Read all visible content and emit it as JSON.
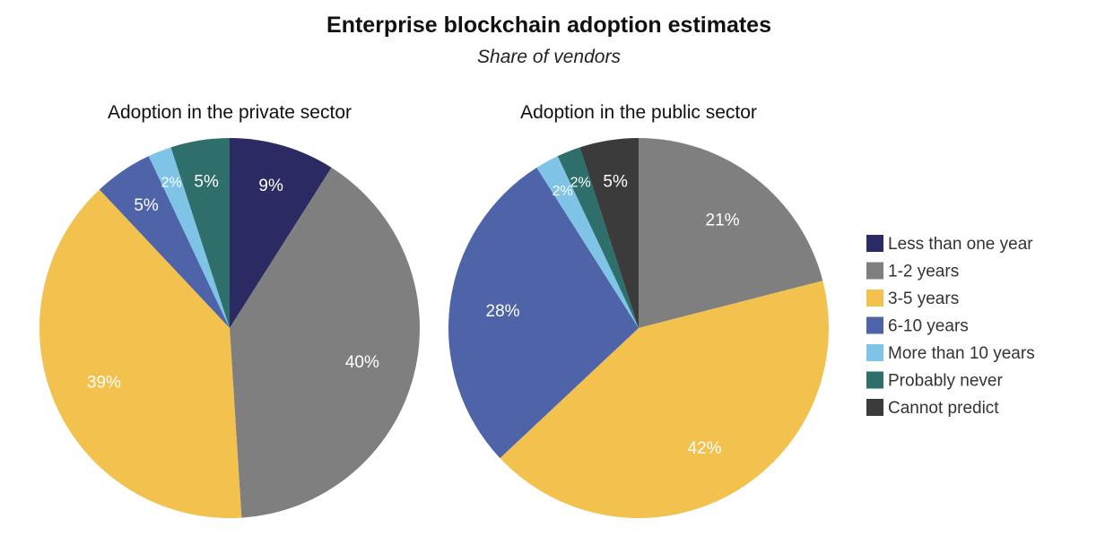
{
  "chart_data": {
    "title": "Enterprise blockchain adoption estimates",
    "subtitle": "Share of vendors",
    "legend": {
      "placement": "right",
      "entries": [
        {
          "name": "Less than one year",
          "color": "#2b2a63"
        },
        {
          "name": "1-2 years",
          "color": "#7f7f7f"
        },
        {
          "name": "3-5 years",
          "color": "#f2c14e"
        },
        {
          "name": "6-10 years",
          "color": "#4e63a8"
        },
        {
          "name": "More than 10 years",
          "color": "#7fc4e7"
        },
        {
          "name": "Probably never",
          "color": "#2f6f6b"
        },
        {
          "name": "Cannot predict",
          "color": "#3b3b3b"
        }
      ]
    },
    "charts": [
      {
        "type": "pie",
        "title": "Adoption in the private sector",
        "slices": [
          {
            "name": "Less than one year",
            "value": 9,
            "label": "9%"
          },
          {
            "name": "1-2 years",
            "value": 40,
            "label": "40%"
          },
          {
            "name": "3-5 years",
            "value": 39,
            "label": "39%"
          },
          {
            "name": "6-10 years",
            "value": 5,
            "label": "5%"
          },
          {
            "name": "More than 10 years",
            "value": 2,
            "label": "2%"
          },
          {
            "name": "Probably never",
            "value": 5,
            "label": "5%"
          }
        ]
      },
      {
        "type": "pie",
        "title": "Adoption in the public sector",
        "slices": [
          {
            "name": "1-2 years",
            "value": 21,
            "label": "21%"
          },
          {
            "name": "3-5 years",
            "value": 42,
            "label": "42%"
          },
          {
            "name": "6-10 years",
            "value": 28,
            "label": "28%"
          },
          {
            "name": "More than 10 years",
            "value": 2,
            "label": "2%"
          },
          {
            "name": "Probably never",
            "value": 2,
            "label": "2%"
          },
          {
            "name": "Cannot predict",
            "value": 5,
            "label": "5%"
          }
        ]
      }
    ]
  }
}
